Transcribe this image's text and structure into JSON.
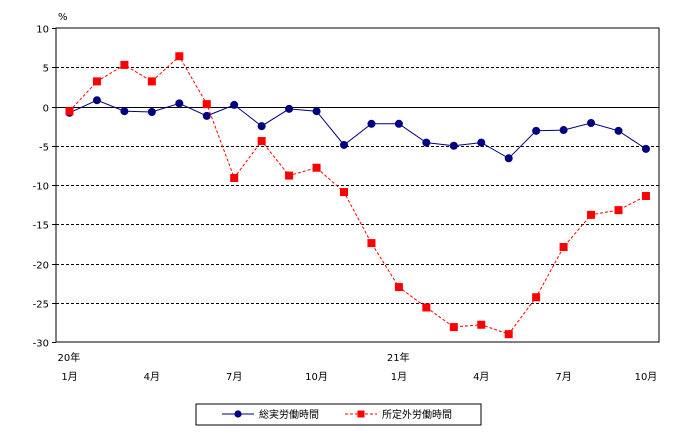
{
  "chart_data": {
    "type": "line",
    "y_unit": "%",
    "ylim": [
      -30,
      10
    ],
    "yticks": [
      10,
      5,
      0,
      -5,
      -10,
      -15,
      -20,
      -25,
      -30
    ],
    "x_labels": [
      {
        "index": 0,
        "month": "1月",
        "year": "20年"
      },
      {
        "index": 3,
        "month": "4月",
        "year": ""
      },
      {
        "index": 6,
        "month": "7月",
        "year": ""
      },
      {
        "index": 9,
        "month": "10月",
        "year": ""
      },
      {
        "index": 12,
        "month": "1月",
        "year": "21年"
      },
      {
        "index": 15,
        "month": "4月",
        "year": ""
      },
      {
        "index": 18,
        "month": "7月",
        "year": ""
      },
      {
        "index": 21,
        "month": "10月",
        "year": ""
      }
    ],
    "point_count": 22,
    "grid": "horizontal dashed",
    "legend_position": "bottom",
    "series": [
      {
        "name": "総実労働時間",
        "color": "#000080",
        "marker": "circle",
        "line": "solid",
        "values": [
          -0.8,
          0.8,
          -0.6,
          -0.7,
          0.4,
          -1.2,
          0.2,
          -2.5,
          -0.3,
          -0.6,
          -4.9,
          -2.2,
          -2.2,
          -4.6,
          -5.0,
          -4.6,
          -6.6,
          -3.1,
          -3.0,
          -2.1,
          -3.1,
          -5.4
        ]
      },
      {
        "name": "所定外労働時間",
        "color": "#ff0000",
        "marker": "square",
        "line": "dashed",
        "values": [
          -0.6,
          3.2,
          5.3,
          3.2,
          6.4,
          0.3,
          -9.1,
          -4.4,
          -8.8,
          -7.8,
          -10.9,
          -17.4,
          -23.0,
          -25.6,
          -28.1,
          -27.8,
          -29.0,
          -24.3,
          -17.9,
          -13.8,
          -13.2,
          -11.4
        ]
      }
    ]
  }
}
